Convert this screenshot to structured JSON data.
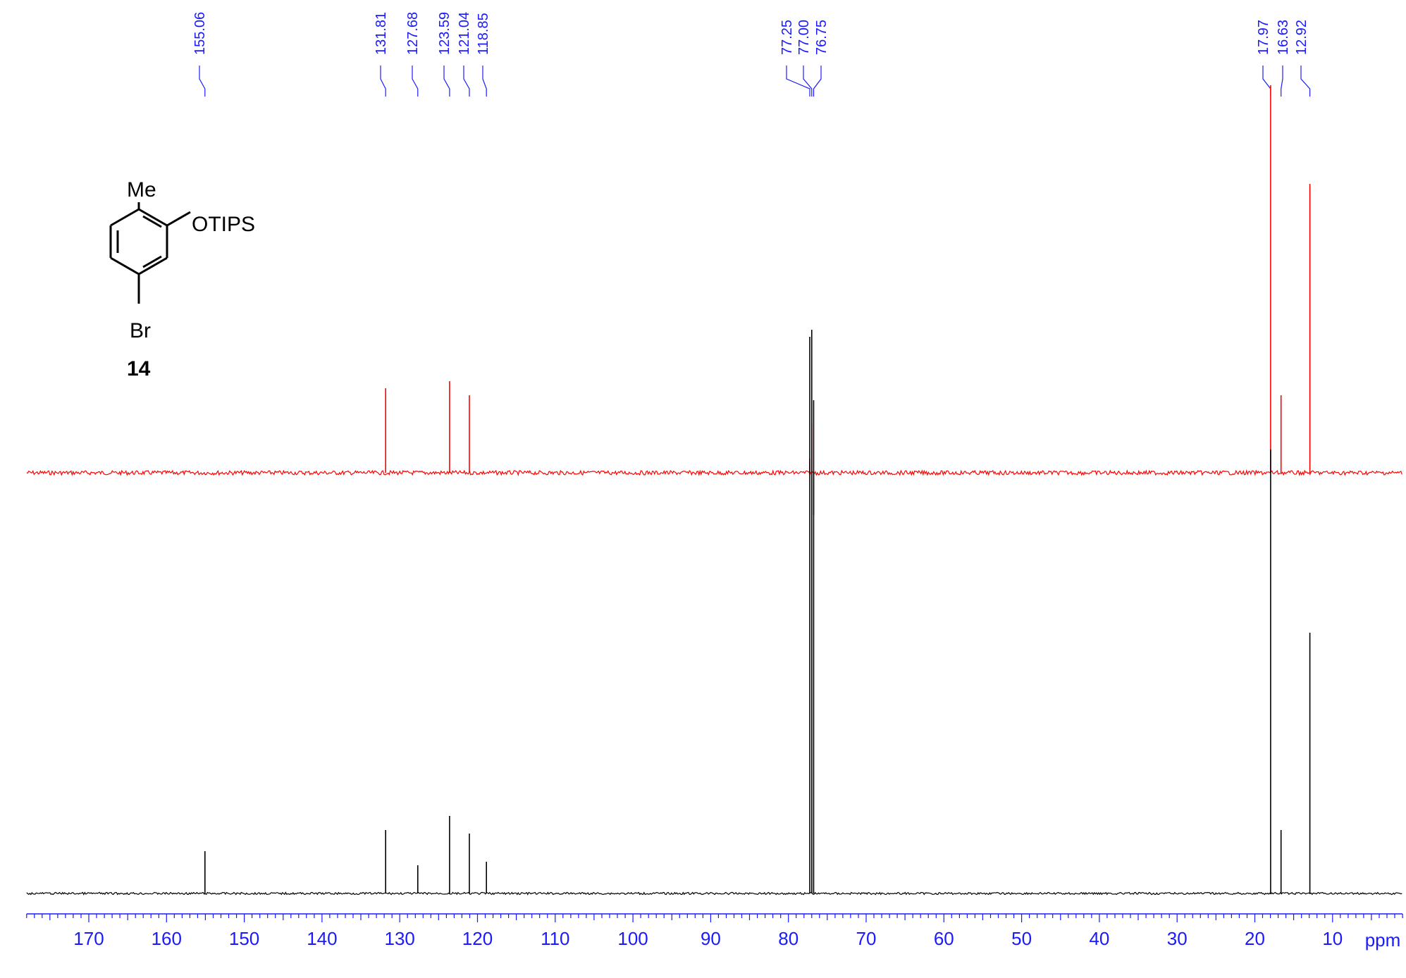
{
  "chart_data": {
    "type": "line",
    "spectrum_kind": "13C NMR",
    "x_axis": {
      "unit": "ppm",
      "range": [
        178,
        1
      ],
      "reversed": true,
      "major_ticks": [
        170,
        160,
        150,
        140,
        130,
        120,
        110,
        100,
        90,
        80,
        70,
        60,
        50,
        40,
        30,
        20,
        10
      ],
      "major_tick_labels": [
        "170",
        "160",
        "150",
        "140",
        "130",
        "120",
        "110",
        "100",
        "90",
        "80",
        "70",
        "60",
        "50",
        "40",
        "30",
        "20",
        "10"
      ],
      "minor_tick_step": 1
    },
    "peak_labels": [
      "155.06",
      "131.81",
      "127.68",
      "123.59",
      "121.04",
      "118.85",
      "77.25",
      "77.00",
      "76.75",
      "17.97",
      "16.63",
      "12.92"
    ],
    "peak_label_positions": [
      155.06,
      131.81,
      127.68,
      123.59,
      121.04,
      118.85,
      77.25,
      77.0,
      76.75,
      17.97,
      16.63,
      12.92
    ],
    "series": [
      {
        "color": "#ff0000",
        "baseline": 0,
        "peaks": [
          {
            "ppm": 131.81,
            "height": 0.12
          },
          {
            "ppm": 123.59,
            "height": 0.13
          },
          {
            "ppm": 121.04,
            "height": 0.11
          },
          {
            "ppm": 77.25,
            "height": 0.02
          },
          {
            "ppm": 77.0,
            "height": 0.07
          },
          {
            "ppm": 76.75,
            "height": -0.06
          },
          {
            "ppm": 17.97,
            "height": 0.55
          },
          {
            "ppm": 16.63,
            "height": 0.11
          },
          {
            "ppm": 12.92,
            "height": 0.41
          }
        ]
      },
      {
        "color": "#000000",
        "baseline": 0,
        "peaks": [
          {
            "ppm": 155.06,
            "height": 0.06
          },
          {
            "ppm": 131.81,
            "height": 0.09
          },
          {
            "ppm": 127.68,
            "height": 0.04
          },
          {
            "ppm": 123.59,
            "height": 0.11
          },
          {
            "ppm": 121.04,
            "height": 0.085
          },
          {
            "ppm": 118.85,
            "height": 0.045
          },
          {
            "ppm": 77.25,
            "height": 0.79
          },
          {
            "ppm": 77.0,
            "height": 0.8
          },
          {
            "ppm": 76.75,
            "height": 0.7
          },
          {
            "ppm": 17.97,
            "height": 0.63
          },
          {
            "ppm": 16.63,
            "height": 0.09
          },
          {
            "ppm": 12.92,
            "height": 0.37
          }
        ]
      }
    ],
    "grid": false,
    "legend": "none"
  },
  "molecule": {
    "substituents": [
      "Me",
      "OTIPS",
      "Br"
    ],
    "compound_number": "14"
  }
}
